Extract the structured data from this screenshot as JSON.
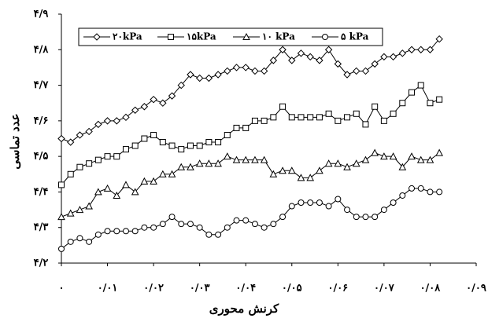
{
  "chart_data": {
    "type": "line",
    "x_label": "کرنش محوری",
    "y_label": "عدد تماسی",
    "x": [
      0,
      0.002,
      0.004,
      0.006,
      0.008,
      0.01,
      0.012,
      0.014,
      0.016,
      0.018,
      0.02,
      0.022,
      0.024,
      0.026,
      0.028,
      0.03,
      0.032,
      0.034,
      0.036,
      0.038,
      0.04,
      0.042,
      0.044,
      0.046,
      0.048,
      0.05,
      0.052,
      0.054,
      0.056,
      0.058,
      0.06,
      0.062,
      0.064,
      0.066,
      0.068,
      0.07,
      0.072,
      0.074,
      0.076,
      0.078,
      0.08,
      0.082
    ],
    "series": [
      {
        "name": "۲۰kPa",
        "color": "#000000",
        "marker": "diamond",
        "values": [
          4.55,
          4.54,
          4.56,
          4.57,
          4.59,
          4.6,
          4.6,
          4.61,
          4.63,
          4.64,
          4.66,
          4.65,
          4.67,
          4.7,
          4.73,
          4.72,
          4.72,
          4.73,
          4.74,
          4.75,
          4.75,
          4.74,
          4.74,
          4.77,
          4.8,
          4.77,
          4.79,
          4.78,
          4.77,
          4.8,
          4.76,
          4.73,
          4.74,
          4.74,
          4.76,
          4.78,
          4.78,
          4.79,
          4.8,
          4.8,
          4.8,
          4.83
        ]
      },
      {
        "name": "۱۵kPa",
        "color": "#000000",
        "marker": "square",
        "values": [
          4.42,
          4.45,
          4.47,
          4.48,
          4.49,
          4.5,
          4.5,
          4.52,
          4.53,
          4.55,
          4.56,
          4.54,
          4.53,
          4.52,
          4.53,
          4.53,
          4.54,
          4.54,
          4.56,
          4.58,
          4.58,
          4.6,
          4.6,
          4.61,
          4.64,
          4.61,
          4.61,
          4.61,
          4.61,
          4.62,
          4.6,
          4.61,
          4.62,
          4.59,
          4.64,
          4.6,
          4.62,
          4.65,
          4.68,
          4.7,
          4.65,
          4.66
        ]
      },
      {
        "name": "۱۰ kPa",
        "color": "#000000",
        "marker": "triangle",
        "values": [
          4.33,
          4.34,
          4.35,
          4.36,
          4.4,
          4.41,
          4.39,
          4.42,
          4.4,
          4.43,
          4.43,
          4.45,
          4.45,
          4.47,
          4.47,
          4.48,
          4.48,
          4.48,
          4.5,
          4.49,
          4.49,
          4.49,
          4.49,
          4.45,
          4.46,
          4.46,
          4.44,
          4.44,
          4.46,
          4.48,
          4.48,
          4.47,
          4.48,
          4.49,
          4.51,
          4.5,
          4.5,
          4.47,
          4.5,
          4.49,
          4.49,
          4.51
        ]
      },
      {
        "name": "۵ kPa",
        "color": "#000000",
        "marker": "circle",
        "values": [
          4.24,
          4.26,
          4.27,
          4.26,
          4.28,
          4.29,
          4.29,
          4.29,
          4.29,
          4.3,
          4.3,
          4.31,
          4.33,
          4.31,
          4.31,
          4.3,
          4.28,
          4.28,
          4.3,
          4.32,
          4.32,
          4.31,
          4.3,
          4.31,
          4.33,
          4.36,
          4.37,
          4.37,
          4.37,
          4.36,
          4.38,
          4.35,
          4.33,
          4.33,
          4.33,
          4.35,
          4.37,
          4.39,
          4.41,
          4.41,
          4.4,
          4.4
        ]
      }
    ],
    "xlim": [
      0,
      0.09
    ],
    "xticks": [
      {
        "value": 0,
        "label": "۰"
      },
      {
        "value": 0.01,
        "label": "۰/۰۱"
      },
      {
        "value": 0.02,
        "label": "۰/۰۲"
      },
      {
        "value": 0.03,
        "label": "۰/۰۳"
      },
      {
        "value": 0.04,
        "label": "۰/۰۴"
      },
      {
        "value": 0.05,
        "label": "۰/۰۵"
      },
      {
        "value": 0.06,
        "label": "۰/۰۶"
      },
      {
        "value": 0.07,
        "label": "۰/۰۷"
      },
      {
        "value": 0.08,
        "label": "۰/۰۸"
      },
      {
        "value": 0.09,
        "label": "۰/۰۹"
      }
    ],
    "ylim": [
      4.2,
      4.9
    ],
    "yticks": [
      {
        "value": 4.2,
        "label": "۴/۲"
      },
      {
        "value": 4.3,
        "label": "۴/۳"
      },
      {
        "value": 4.4,
        "label": "۴/۴"
      },
      {
        "value": 4.5,
        "label": "۴/۵"
      },
      {
        "value": 4.6,
        "label": "۴/۶"
      },
      {
        "value": 4.7,
        "label": "۴/۷"
      },
      {
        "value": 4.8,
        "label": "۴/۸"
      },
      {
        "value": 4.9,
        "label": "۴/۹"
      }
    ],
    "grid": false,
    "legend": "top"
  }
}
